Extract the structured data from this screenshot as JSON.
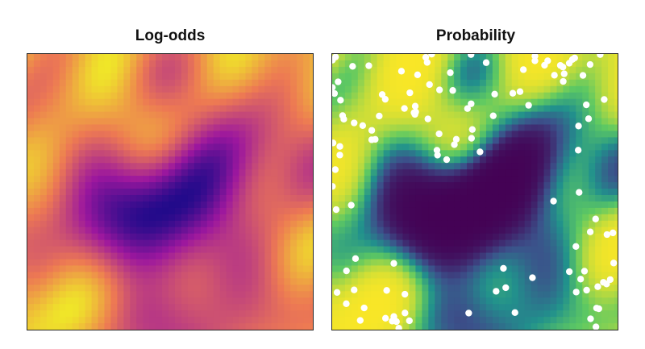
{
  "chart_data": [
    {
      "type": "heatmap",
      "title": "Log-odds",
      "colormap": "plasma",
      "axes_visible": false,
      "grid": false,
      "description_hidden": false
    },
    {
      "type": "heatmap",
      "title": "Probability",
      "colormap": "viridis",
      "axes_visible": false,
      "grid": false,
      "overlay_points": {
        "marker": "circle",
        "color": "#ffffff"
      }
    }
  ],
  "colors": {
    "plasma_dark": "#0d0887",
    "plasma_mid": "#9c179e",
    "plasma_orange": "#ed7953",
    "plasma_yellow": "#f0f921",
    "viridis_dark": "#440154",
    "viridis_teal": "#21918c",
    "viridis_yellow": "#fde725",
    "points": "#ffffff"
  }
}
